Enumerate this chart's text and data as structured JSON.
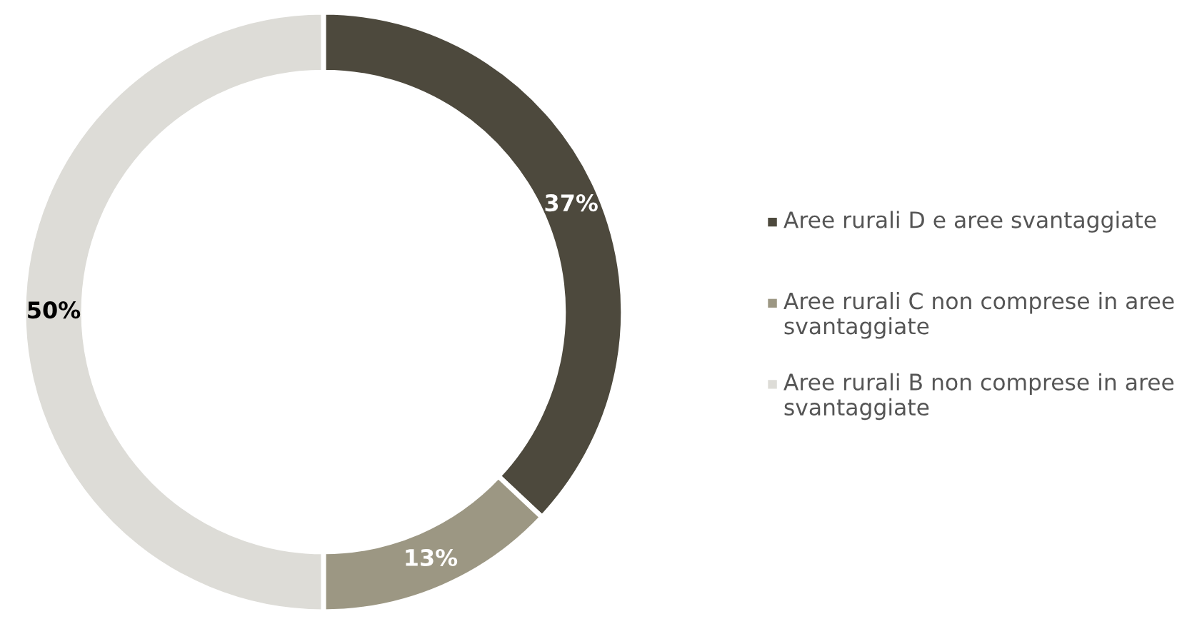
{
  "chart_data": {
    "type": "donut",
    "categories": [
      "Aree rurali D e aree svantaggiate",
      "Aree rurali C non comprese in aree svantaggiate",
      "Aree rurali B non comprese in aree svantaggiate"
    ],
    "values": [
      37,
      13,
      50
    ],
    "colors": [
      "#4d493d",
      "#9c9783",
      "#dddcd7"
    ],
    "value_labels": [
      "37%",
      "13%",
      "50%"
    ],
    "legend": "right"
  }
}
